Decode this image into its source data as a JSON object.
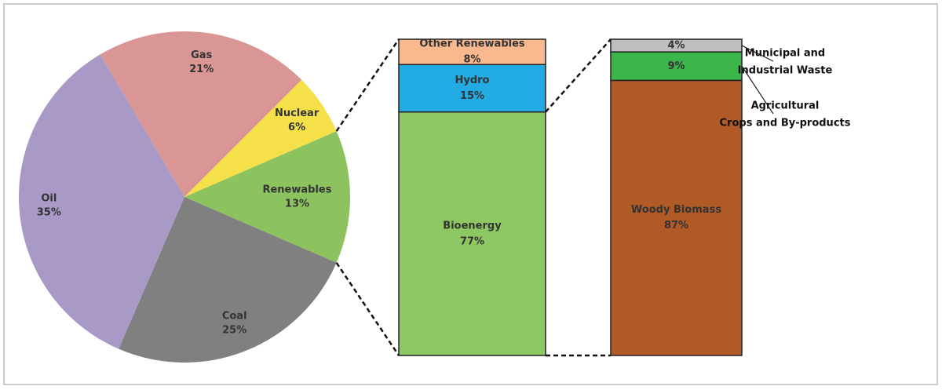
{
  "chart_data": [
    {
      "type": "pie",
      "categories": [
        "Gas",
        "Nuclear",
        "Renewables",
        "Coal",
        "Oil"
      ],
      "values": [
        21,
        6,
        13,
        25,
        35
      ],
      "value_labels": [
        "21%",
        "6%",
        "13%",
        "25%",
        "35%"
      ],
      "colors": [
        "#d99694",
        "#f5e04a",
        "#8dc35f",
        "#808080",
        "#a999c7"
      ]
    },
    {
      "type": "stacked_bar",
      "categories": [
        [
          "Bioenergy"
        ],
        [
          "Hydro"
        ],
        [
          "Other Renewables"
        ]
      ],
      "values": [
        77,
        15,
        8
      ],
      "value_labels": [
        "77%",
        "15%",
        "8%"
      ],
      "colors": [
        "#8dc862",
        "#22abe3",
        "#f9b88e"
      ]
    },
    {
      "type": "stacked_bar",
      "categories": [
        [
          "Woody Biomass"
        ],
        [
          "Agricultural",
          "Crops and By-products"
        ],
        [
          "Municipal and",
          "Industrial Waste"
        ]
      ],
      "values": [
        87,
        9,
        4
      ],
      "value_labels": [
        "87%",
        "9%",
        "4%"
      ],
      "colors": [
        "#b05a26",
        "#3cb54a",
        "#bfbfbf"
      ]
    }
  ]
}
